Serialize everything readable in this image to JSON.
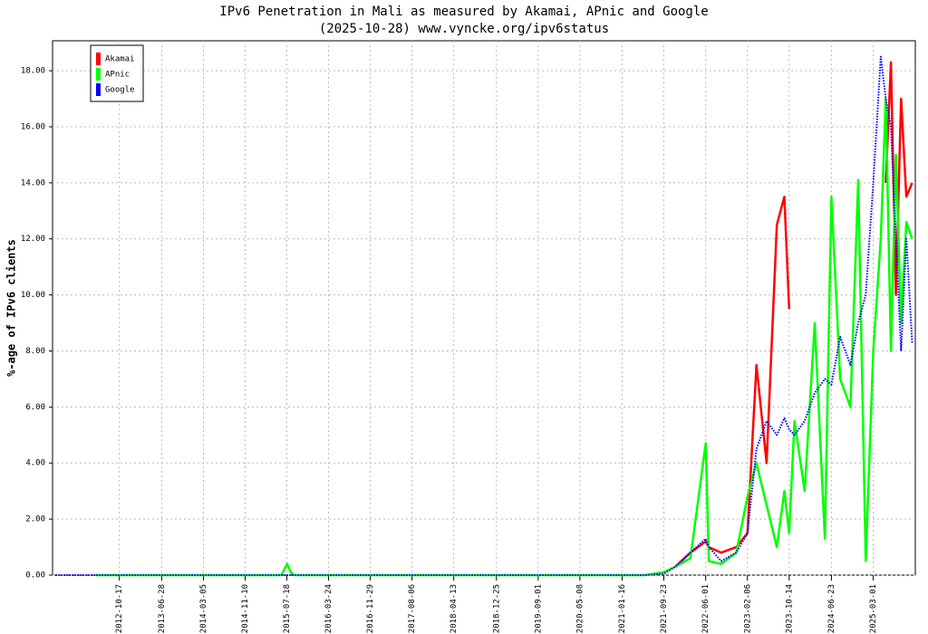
{
  "chart_data": {
    "type": "line",
    "title": "IPv6 Penetration in Mali as measured by Akamai, APnic and Google",
    "subtitle": "(2025-10-28) www.vyncke.org/ipv6status",
    "y_label": "%-age of IPv6 clients",
    "x": [
      "2011-10-01",
      "2012-06-01",
      "2013-06-01",
      "2014-06-01",
      "2015-06-15",
      "2015-07-20",
      "2015-08-10",
      "2015-09-01",
      "2016-06-01",
      "2017-06-01",
      "2018-06-01",
      "2019-06-01",
      "2020-06-01",
      "2021-06-01",
      "2021-09-23",
      "2021-12-01",
      "2022-03-01",
      "2022-06-01",
      "2022-06-20",
      "2022-09-01",
      "2022-12-01",
      "2023-02-06",
      "2023-04-01",
      "2023-06-01",
      "2023-08-01",
      "2023-09-15",
      "2023-10-14",
      "2023-11-15",
      "2024-01-15",
      "2024-03-15",
      "2024-05-15",
      "2024-06-23",
      "2024-08-15",
      "2024-10-15",
      "2024-12-01",
      "2025-01-15",
      "2025-03-01",
      "2025-04-15",
      "2025-05-15",
      "2025-06-15",
      "2025-07-15",
      "2025-08-15",
      "2025-09-15",
      "2025-10-20"
    ],
    "series": [
      {
        "name": "Akamai",
        "color": "#ff0000",
        "style": "solid",
        "values": [
          null,
          null,
          null,
          null,
          null,
          null,
          null,
          null,
          null,
          null,
          null,
          null,
          null,
          null,
          null,
          0.3,
          0.8,
          1.2,
          1.0,
          0.8,
          1.0,
          1.5,
          7.5,
          4.0,
          12.5,
          13.5,
          9.5,
          null,
          null,
          null,
          null,
          null,
          null,
          null,
          null,
          null,
          null,
          null,
          14.0,
          18.3,
          10.0,
          17.0,
          13.5,
          14.0
        ]
      },
      {
        "name": "APnic",
        "color": "#00ff00",
        "style": "solid",
        "values": [
          null,
          0,
          0,
          0,
          0,
          0.4,
          0.1,
          0,
          0,
          0,
          0,
          0,
          0,
          0,
          0.1,
          0.3,
          0.6,
          4.7,
          0.5,
          0.4,
          0.8,
          2.8,
          4.0,
          2.5,
          1.0,
          3.0,
          1.5,
          5.5,
          3.0,
          9.0,
          1.3,
          13.5,
          7.0,
          6.0,
          14.1,
          0.5,
          8.0,
          12.0,
          17.0,
          8.0,
          15.0,
          9.0,
          12.6,
          12.0
        ]
      },
      {
        "name": "Google",
        "color": "#0000ff",
        "style": "dotted",
        "values": [
          0,
          0,
          0,
          0,
          0,
          0,
          0,
          0,
          0,
          0,
          0,
          0,
          0,
          0,
          0.05,
          0.3,
          0.8,
          1.3,
          1.0,
          0.5,
          0.8,
          1.5,
          4.5,
          5.5,
          5.0,
          5.6,
          5.2,
          5.0,
          5.5,
          6.5,
          7.0,
          6.8,
          8.5,
          7.5,
          9.0,
          10.0,
          14.0,
          18.5,
          17.0,
          16.0,
          12.0,
          8.0,
          12.0,
          8.3
        ]
      }
    ],
    "xlim": [
      "2011-09-13",
      "2025-11-08"
    ],
    "xticks": [
      "2012-10-17",
      "2013-06-28",
      "2014-03-05",
      "2014-11-10",
      "2015-07-18",
      "2016-03-24",
      "2016-11-29",
      "2017-08-06",
      "2018-04-13",
      "2018-12-25",
      "2019-09-01",
      "2020-05-08",
      "2021-01-16",
      "2021-09-23",
      "2022-06-01",
      "2023-02-06",
      "2023-10-14",
      "2024-06-23",
      "2025-03-01"
    ],
    "ylim": [
      0,
      19.07
    ],
    "yticks": [
      {
        "value": 0,
        "label": "0.00"
      },
      {
        "value": 2,
        "label": "2.00"
      },
      {
        "value": 4,
        "label": "4.00"
      },
      {
        "value": 6,
        "label": "6.00"
      },
      {
        "value": 8,
        "label": "8.00"
      },
      {
        "value": 10,
        "label": "10.00"
      },
      {
        "value": 12,
        "label": "12.00"
      },
      {
        "value": 14,
        "label": "14.00"
      },
      {
        "value": 16,
        "label": "16.00"
      },
      {
        "value": 18,
        "label": "18.00"
      }
    ],
    "grid": true,
    "legend": "top-left"
  }
}
